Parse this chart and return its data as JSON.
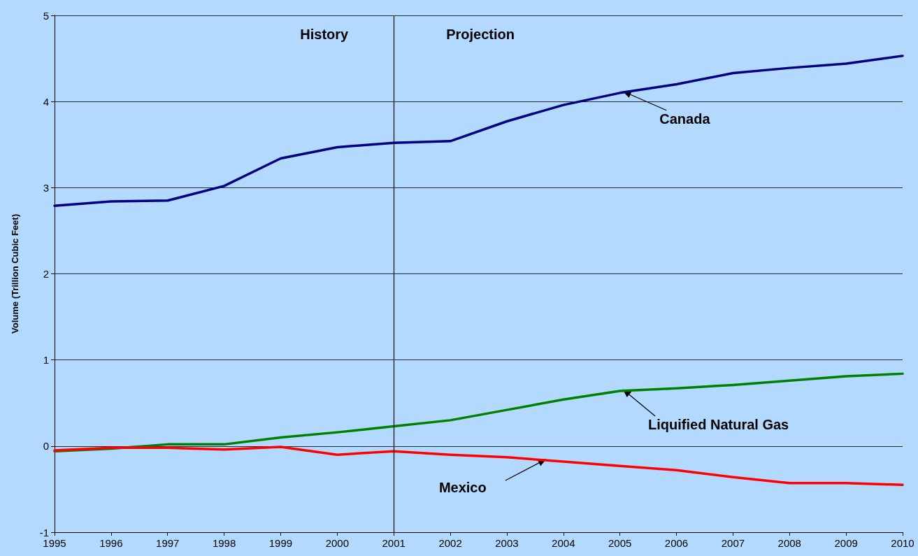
{
  "chart_data": {
    "type": "line",
    "ylabel": "Volume (Trillion Cubic Feet)",
    "x": [
      1995,
      1996,
      1997,
      1998,
      1999,
      2000,
      2001,
      2002,
      2003,
      2004,
      2005,
      2006,
      2007,
      2008,
      2009,
      2010
    ],
    "series": [
      {
        "name": "Canada",
        "color": "#000080",
        "values": [
          2.79,
          2.84,
          2.85,
          3.02,
          3.34,
          3.47,
          3.52,
          3.54,
          3.77,
          3.96,
          4.1,
          4.2,
          4.33,
          4.39,
          4.44,
          4.53
        ]
      },
      {
        "name": "Liquified Natural Gas",
        "color": "#008000",
        "values": [
          -0.06,
          -0.03,
          0.02,
          0.02,
          0.1,
          0.16,
          0.23,
          0.3,
          0.42,
          0.54,
          0.64,
          0.67,
          0.71,
          0.76,
          0.81,
          0.84
        ]
      },
      {
        "name": "Mexico",
        "color": "#ff0000",
        "values": [
          -0.05,
          -0.02,
          -0.02,
          -0.04,
          -0.01,
          -0.1,
          -0.06,
          -0.1,
          -0.13,
          -0.18,
          -0.23,
          -0.28,
          -0.36,
          -0.43,
          -0.43,
          -0.45
        ]
      }
    ],
    "xlim": [
      1995,
      2010
    ],
    "xticks": [
      1995,
      1996,
      1997,
      1998,
      1999,
      2000,
      2001,
      2002,
      2003,
      2004,
      2005,
      2006,
      2007,
      2008,
      2009,
      2010
    ],
    "ylim": [
      -1,
      5
    ],
    "yticks": [
      -1,
      0,
      1,
      2,
      3,
      4,
      5
    ],
    "grid": "y",
    "legend": false,
    "marker": "none",
    "line_style": "solid",
    "ref_lines": [
      {
        "axis": "x",
        "value": 2001,
        "color": "#000000"
      }
    ],
    "annotations": [
      "History",
      "Projection"
    ]
  }
}
